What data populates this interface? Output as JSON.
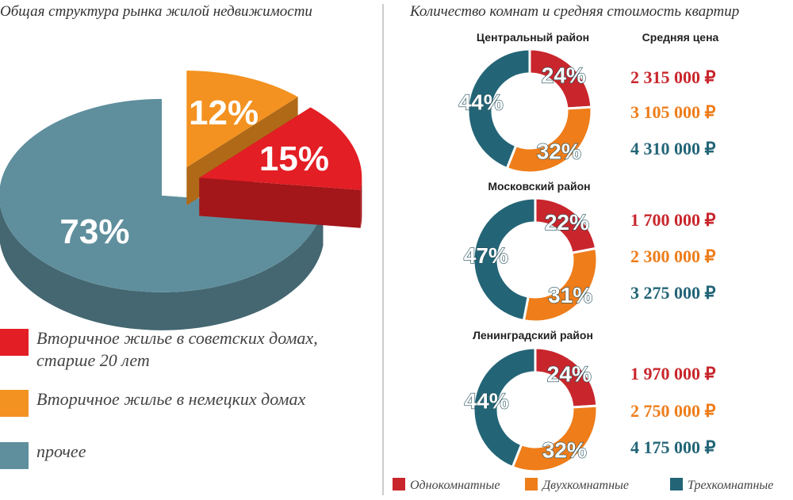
{
  "chart_data": [
    {
      "type": "pie3d",
      "title": "Общая структура рынка жилой недвижимости",
      "categories": [
        "Вторичное жилье в советских домах, старше 20 лет",
        "Вторичное жилье в немецких домах",
        "прочее"
      ],
      "values": [
        15,
        12,
        73
      ],
      "value_labels": [
        "15%",
        "12%",
        "73%"
      ],
      "colors": [
        "#e31e24",
        "#f39220",
        "#5f8f9d"
      ]
    },
    {
      "type": "donut",
      "title": "Центральный район",
      "values": [
        24,
        32,
        44
      ],
      "value_labels": [
        "24%",
        "32%",
        "44%"
      ]
    },
    {
      "type": "donut",
      "title": "Московский район",
      "values": [
        22,
        31,
        47
      ],
      "value_labels": [
        "22%",
        "31%",
        "47%"
      ]
    },
    {
      "type": "donut",
      "title": "Ленинградский район",
      "values": [
        24,
        32,
        44
      ],
      "value_labels": [
        "24%",
        "32%",
        "44%"
      ]
    }
  ],
  "right_panel": {
    "title": "Количество комнат и средняя стоимость квартир",
    "price_header": "Средняя цена",
    "legend": [
      {
        "name": "Однокомнатные",
        "color": "#c8262c"
      },
      {
        "name": "Двухкомнатные",
        "color": "#ee7d1a"
      },
      {
        "name": "Трехкомнатные",
        "color": "#236577"
      }
    ],
    "prices": [
      [
        "2 315 000 ₽",
        "3 105 000 ₽",
        "4 310 000 ₽"
      ],
      [
        "1 700 000 ₽",
        "2 300 000 ₽",
        "3 275 000 ₽"
      ],
      [
        "1 970 000 ₽",
        "2 750 000 ₽",
        "4 175 000 ₽"
      ]
    ]
  }
}
